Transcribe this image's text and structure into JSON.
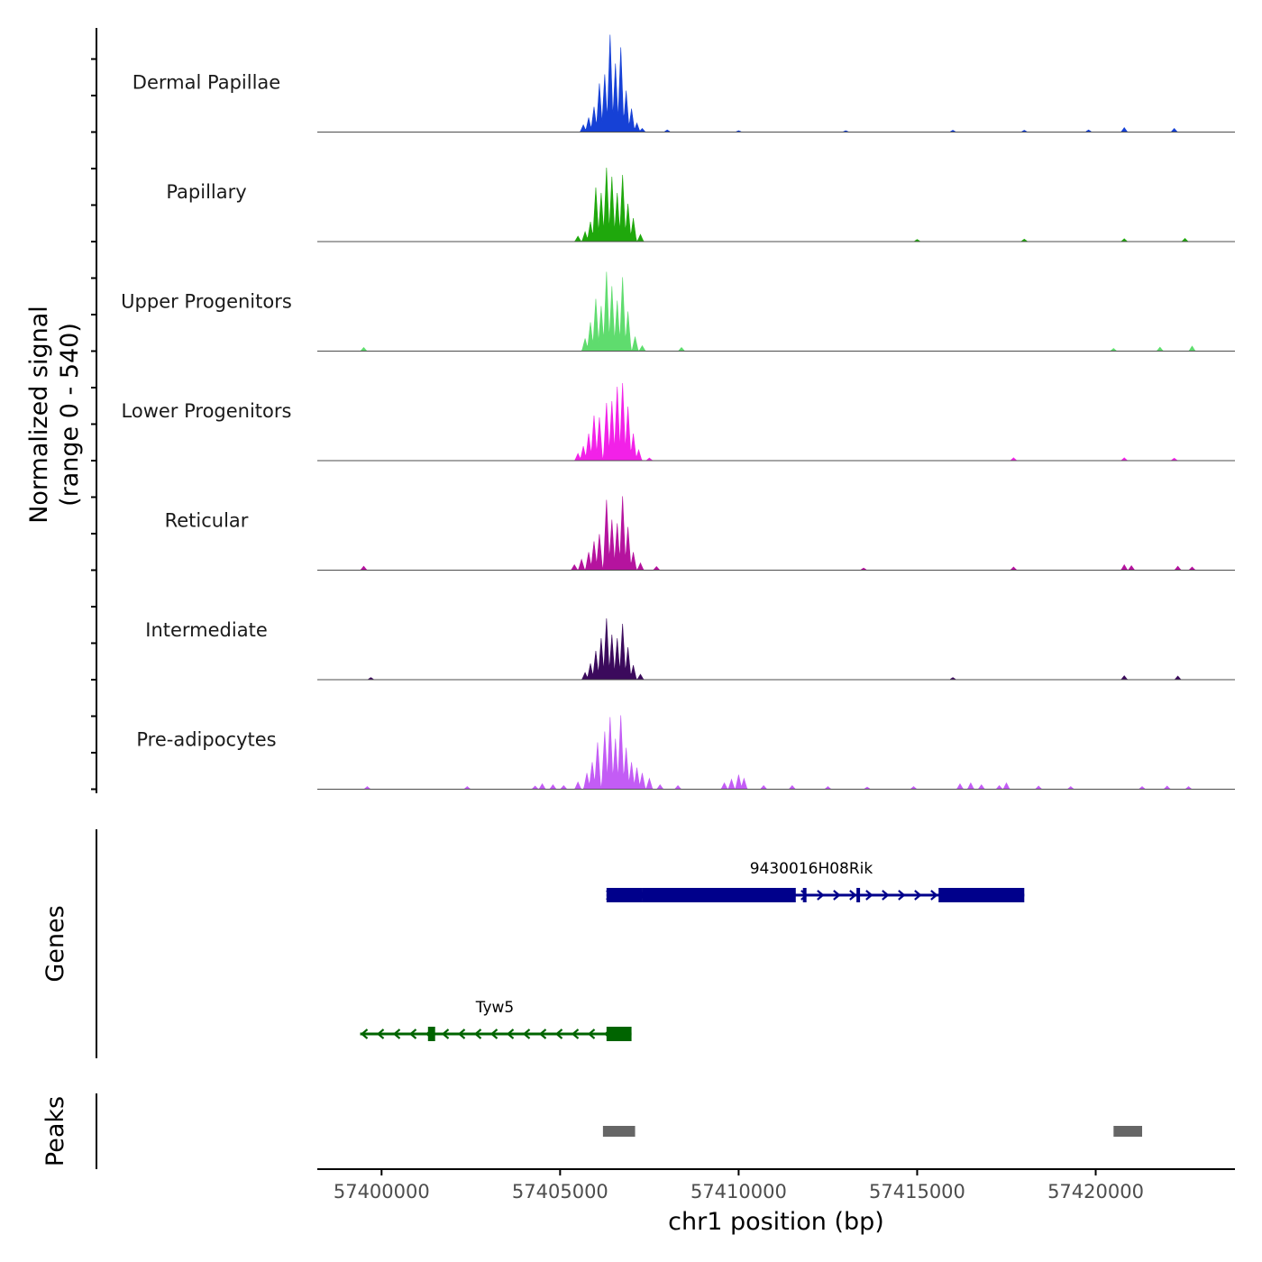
{
  "chart_data": {
    "type": "area",
    "title": "",
    "chromosome": "chr1",
    "xlabel": "chr1 position (bp)",
    "ylabel": "Normalized signal",
    "ylabel_range": "(range 0 - 540)",
    "ylim": [
      0,
      540
    ],
    "xlim": [
      57398200,
      57423900
    ],
    "x_ticks": [
      57400000,
      57405000,
      57410000,
      57415000,
      57420000
    ],
    "x_tick_labels": [
      "57400000",
      "57405000",
      "57410000",
      "57415000",
      "57420000"
    ],
    "tracks": [
      {
        "name": "Dermal Papillae",
        "color": "#1641D6",
        "peaks": [
          [
            57405650,
            40
          ],
          [
            57405800,
            80
          ],
          [
            57405950,
            140
          ],
          [
            57406100,
            270
          ],
          [
            57406250,
            320
          ],
          [
            57406400,
            540
          ],
          [
            57406550,
            380
          ],
          [
            57406700,
            470
          ],
          [
            57406850,
            230
          ],
          [
            57407000,
            130
          ],
          [
            57407150,
            50
          ],
          [
            57407300,
            20
          ],
          [
            57408000,
            12
          ],
          [
            57410000,
            8
          ],
          [
            57413000,
            8
          ],
          [
            57416000,
            10
          ],
          [
            57418000,
            10
          ],
          [
            57419800,
            12
          ],
          [
            57420800,
            25
          ],
          [
            57422200,
            20
          ]
        ]
      },
      {
        "name": "Papillary",
        "color": "#1FA80C",
        "peaks": [
          [
            57405500,
            30
          ],
          [
            57405700,
            55
          ],
          [
            57405850,
            110
          ],
          [
            57406000,
            300
          ],
          [
            57406150,
            270
          ],
          [
            57406300,
            410
          ],
          [
            57406450,
            360
          ],
          [
            57406600,
            270
          ],
          [
            57406750,
            370
          ],
          [
            57406900,
            210
          ],
          [
            57407050,
            130
          ],
          [
            57407250,
            40
          ],
          [
            57415000,
            12
          ],
          [
            57418000,
            14
          ],
          [
            57420800,
            16
          ],
          [
            57422500,
            18
          ]
        ]
      },
      {
        "name": "Upper Progenitors",
        "color": "#5FDC6E",
        "peaks": [
          [
            57399500,
            20
          ],
          [
            57405700,
            70
          ],
          [
            57405850,
            160
          ],
          [
            57406000,
            290
          ],
          [
            57406150,
            250
          ],
          [
            57406300,
            440
          ],
          [
            57406450,
            360
          ],
          [
            57406600,
            280
          ],
          [
            57406750,
            410
          ],
          [
            57406900,
            220
          ],
          [
            57407100,
            80
          ],
          [
            57407300,
            30
          ],
          [
            57408400,
            20
          ],
          [
            57420500,
            15
          ],
          [
            57421800,
            22
          ],
          [
            57422700,
            28
          ]
        ]
      },
      {
        "name": "Lower Progenitors",
        "color": "#F221E8",
        "peaks": [
          [
            57405500,
            40
          ],
          [
            57405650,
            80
          ],
          [
            57405800,
            150
          ],
          [
            57405950,
            250
          ],
          [
            57406100,
            240
          ],
          [
            57406300,
            320
          ],
          [
            57406450,
            330
          ],
          [
            57406600,
            410
          ],
          [
            57406750,
            430
          ],
          [
            57406900,
            300
          ],
          [
            57407050,
            150
          ],
          [
            57407200,
            60
          ],
          [
            57407500,
            15
          ],
          [
            57417700,
            16
          ],
          [
            57420800,
            16
          ],
          [
            57422200,
            14
          ]
        ]
      },
      {
        "name": "Reticular",
        "color": "#B5139E",
        "peaks": [
          [
            57399500,
            22
          ],
          [
            57405400,
            30
          ],
          [
            57405600,
            60
          ],
          [
            57405800,
            100
          ],
          [
            57405950,
            160
          ],
          [
            57406100,
            200
          ],
          [
            57406300,
            390
          ],
          [
            57406450,
            280
          ],
          [
            57406600,
            260
          ],
          [
            57406750,
            410
          ],
          [
            57406900,
            240
          ],
          [
            57407050,
            100
          ],
          [
            57407250,
            40
          ],
          [
            57407700,
            20
          ],
          [
            57413500,
            12
          ],
          [
            57417700,
            18
          ],
          [
            57420800,
            30
          ],
          [
            57421000,
            25
          ],
          [
            57422300,
            22
          ],
          [
            57422700,
            18
          ]
        ]
      },
      {
        "name": "Intermediate",
        "color": "#3B0A5C",
        "peaks": [
          [
            57399700,
            12
          ],
          [
            57405700,
            40
          ],
          [
            57405850,
            90
          ],
          [
            57406000,
            160
          ],
          [
            57406150,
            230
          ],
          [
            57406300,
            340
          ],
          [
            57406450,
            250
          ],
          [
            57406600,
            230
          ],
          [
            57406750,
            310
          ],
          [
            57406900,
            180
          ],
          [
            57407050,
            80
          ],
          [
            57407250,
            30
          ],
          [
            57416000,
            12
          ],
          [
            57420800,
            22
          ],
          [
            57422300,
            20
          ]
        ]
      },
      {
        "name": "Pre-adipocytes",
        "color": "#C35CF5",
        "peaks": [
          [
            57399600,
            15
          ],
          [
            57402400,
            15
          ],
          [
            57404300,
            18
          ],
          [
            57404500,
            30
          ],
          [
            57404800,
            25
          ],
          [
            57405100,
            20
          ],
          [
            57405500,
            40
          ],
          [
            57405750,
            90
          ],
          [
            57405900,
            150
          ],
          [
            57406050,
            260
          ],
          [
            57406250,
            320
          ],
          [
            57406400,
            400
          ],
          [
            57406550,
            280
          ],
          [
            57406700,
            410
          ],
          [
            57406850,
            230
          ],
          [
            57407000,
            150
          ],
          [
            57407150,
            120
          ],
          [
            57407300,
            90
          ],
          [
            57407500,
            60
          ],
          [
            57407800,
            25
          ],
          [
            57408300,
            20
          ],
          [
            57409600,
            35
          ],
          [
            57409800,
            55
          ],
          [
            57410000,
            80
          ],
          [
            57410150,
            60
          ],
          [
            57410700,
            20
          ],
          [
            57411500,
            20
          ],
          [
            57412500,
            15
          ],
          [
            57413600,
            12
          ],
          [
            57414900,
            15
          ],
          [
            57416200,
            30
          ],
          [
            57416500,
            35
          ],
          [
            57416800,
            25
          ],
          [
            57417300,
            20
          ],
          [
            57417500,
            35
          ],
          [
            57418400,
            18
          ],
          [
            57419300,
            15
          ],
          [
            57421300,
            15
          ],
          [
            57422000,
            18
          ],
          [
            57422600,
            15
          ]
        ]
      }
    ],
    "genes": [
      {
        "name": "9430016H08Rik",
        "strand": "+",
        "color": "#00008B",
        "start": 57406300,
        "end": 57418000,
        "exons": [
          [
            57406300,
            57407300
          ],
          [
            57407300,
            57411600
          ],
          [
            57411800,
            57411900
          ],
          [
            57413300,
            57413400
          ],
          [
            57415600,
            57418000
          ]
        ]
      },
      {
        "name": "Tyw5",
        "strand": "-",
        "color": "#006400",
        "start": 57399400,
        "end": 57407000,
        "exons": [
          [
            57401300,
            57401500
          ],
          [
            57406300,
            57407000
          ]
        ]
      }
    ],
    "peaks_track": {
      "name": "Peaks",
      "color": "#666666",
      "regions": [
        [
          57406200,
          57407100
        ],
        [
          57420500,
          57421300
        ]
      ]
    },
    "panels": [
      "Genes",
      "Peaks"
    ]
  }
}
